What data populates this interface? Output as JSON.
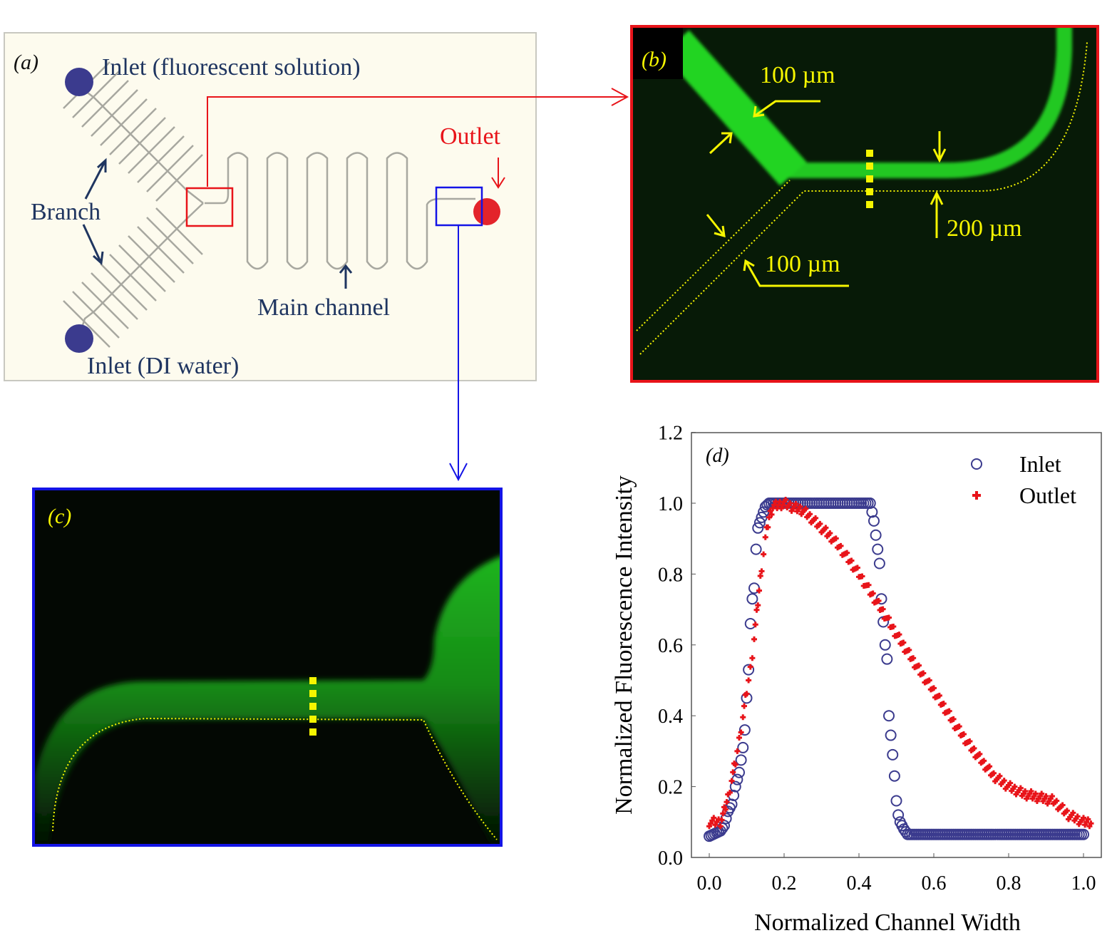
{
  "panel_a": {
    "label": "(a)",
    "inlet_fluorescent": "Inlet (fluorescent solution)",
    "inlet_water": "Inlet (DI water)",
    "branch": "Branch",
    "main_channel": "Main channel",
    "outlet": "Outlet"
  },
  "panel_b": {
    "label": "(b)",
    "width_top": "100 µm",
    "width_main": "200 µm",
    "width_bottom": "100 µm"
  },
  "panel_c": {
    "label": "(c)"
  },
  "colors": {
    "inlet_marker": "#3b3b8e",
    "outlet_marker": "#e8141a",
    "fluorescence": "#22d422",
    "annotation": "#f5f500"
  },
  "chart_data": {
    "type": "scatter",
    "panel_label": "(d)",
    "xlabel": "Normalized Channel Width",
    "ylabel": "Normalized Fluorescence Intensity",
    "xlim": [
      -0.03,
      1.05
    ],
    "ylim": [
      0.0,
      1.2
    ],
    "xticks": [
      "0.0",
      "0.2",
      "0.4",
      "0.6",
      "0.8",
      "1.0"
    ],
    "yticks": [
      "0.0",
      "0.2",
      "0.4",
      "0.6",
      "0.8",
      "1.0",
      "1.2"
    ],
    "legend_position": "top-right",
    "grid": false,
    "series": [
      {
        "name": "Inlet",
        "marker": "open-circle",
        "color": "#3b3b8e",
        "x": [
          0.0,
          0.01,
          0.02,
          0.03,
          0.04,
          0.05,
          0.06,
          0.07,
          0.08,
          0.09,
          0.095,
          0.1,
          0.105,
          0.11,
          0.115,
          0.12,
          0.125,
          0.13,
          0.14,
          0.15,
          0.16,
          0.2,
          0.25,
          0.3,
          0.35,
          0.4,
          0.43,
          0.44,
          0.45,
          0.455,
          0.46,
          0.47,
          0.475,
          0.48,
          0.49,
          0.495,
          0.5,
          0.505,
          0.51,
          0.52,
          0.53,
          0.6,
          0.7,
          0.8,
          0.9,
          1.0
        ],
        "y": [
          0.06,
          0.065,
          0.07,
          0.075,
          0.09,
          0.13,
          0.15,
          0.2,
          0.24,
          0.31,
          0.36,
          0.45,
          0.53,
          0.66,
          0.73,
          0.76,
          0.87,
          0.93,
          0.96,
          0.99,
          1.0,
          1.0,
          1.0,
          1.0,
          1.0,
          1.0,
          1.0,
          0.95,
          0.87,
          0.83,
          0.73,
          0.6,
          0.56,
          0.4,
          0.29,
          0.23,
          0.16,
          0.12,
          0.1,
          0.08,
          0.065,
          0.065,
          0.065,
          0.065,
          0.065,
          0.065
        ]
      },
      {
        "name": "Outlet",
        "marker": "plus",
        "color": "#e8141a",
        "x": [
          0.0,
          0.02,
          0.03,
          0.04,
          0.05,
          0.06,
          0.07,
          0.08,
          0.09,
          0.1,
          0.11,
          0.12,
          0.13,
          0.14,
          0.15,
          0.16,
          0.17,
          0.2,
          0.22,
          0.25,
          0.28,
          0.3,
          0.33,
          0.36,
          0.4,
          0.43,
          0.46,
          0.5,
          0.53,
          0.56,
          0.6,
          0.63,
          0.66,
          0.7,
          0.73,
          0.76,
          0.8,
          0.84,
          0.88,
          0.92,
          0.94,
          0.96,
          0.98,
          1.0,
          1.02
        ],
        "y": [
          0.1,
          0.1,
          0.1,
          0.13,
          0.17,
          0.22,
          0.27,
          0.33,
          0.4,
          0.47,
          0.53,
          0.62,
          0.72,
          0.82,
          0.9,
          0.96,
          0.99,
          1.0,
          0.99,
          0.98,
          0.95,
          0.93,
          0.9,
          0.86,
          0.8,
          0.75,
          0.7,
          0.63,
          0.58,
          0.53,
          0.47,
          0.42,
          0.37,
          0.31,
          0.27,
          0.23,
          0.2,
          0.18,
          0.17,
          0.16,
          0.14,
          0.12,
          0.11,
          0.1,
          0.1
        ]
      }
    ]
  }
}
